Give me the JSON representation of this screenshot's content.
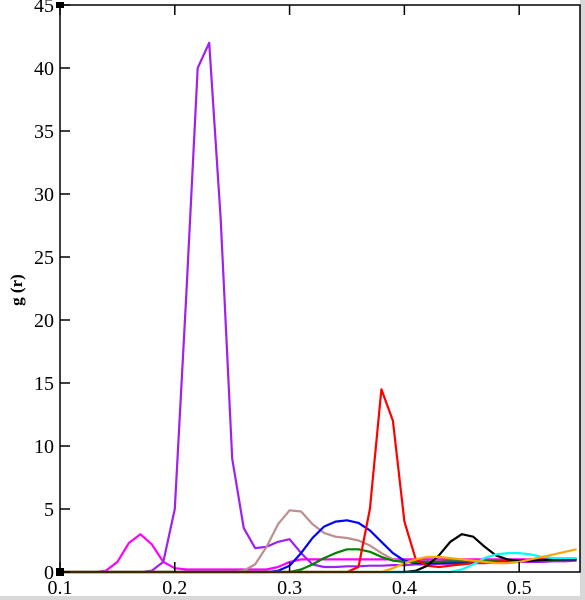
{
  "chart_data": {
    "type": "line",
    "y_label": "g (r)",
    "x": [
      0.1,
      0.11,
      0.12,
      0.13,
      0.14,
      0.15,
      0.16,
      0.17,
      0.18,
      0.19,
      0.2,
      0.21,
      0.22,
      0.23,
      0.24,
      0.25,
      0.26,
      0.27,
      0.28,
      0.29,
      0.3,
      0.31,
      0.32,
      0.33,
      0.34,
      0.35,
      0.36,
      0.37,
      0.38,
      0.39,
      0.4,
      0.41,
      0.42,
      0.43,
      0.44,
      0.45,
      0.46,
      0.47,
      0.48,
      0.49,
      0.5,
      0.51,
      0.52,
      0.53,
      0.54,
      0.55
    ],
    "series": [
      {
        "color": "#ff00ff",
        "values": [
          0,
          0,
          0,
          0,
          0.1,
          0.8,
          2.3,
          3,
          2.2,
          0.8,
          0.3,
          0.2,
          0.2,
          0.2,
          0.2,
          0.2,
          0.2,
          0.2,
          0.2,
          0.4,
          0.8,
          1.0,
          1.0,
          1.0,
          1.0,
          1.0,
          1.0,
          1.0,
          1.0,
          1.0,
          1.0,
          1.0,
          1.0,
          1.0,
          1.0,
          1.0,
          1.0,
          1.0,
          1.0,
          1.0,
          1.0,
          1.0,
          1.0,
          1.0,
          1.0,
          1.0
        ]
      },
      {
        "color": "#a020f0",
        "values": [
          0,
          0,
          0,
          0,
          0,
          0,
          0,
          0,
          0.1,
          0.8,
          5,
          22,
          40,
          42,
          28,
          9,
          3.5,
          1.9,
          2,
          2.4,
          2.6,
          1.5,
          0.6,
          0.4,
          0.4,
          0.45,
          0.45,
          0.5,
          0.5,
          0.55,
          0.55,
          0.6,
          0.6,
          0.65,
          0.65,
          0.7,
          0.7,
          0.7,
          0.75,
          0.75,
          0.8,
          0.8,
          0.8,
          0.85,
          0.85,
          0.9
        ]
      },
      {
        "color": "#bc8f8f",
        "values": [
          0,
          0,
          0,
          0,
          0,
          0,
          0,
          0,
          0,
          0,
          0,
          0,
          0,
          0,
          0,
          0,
          0.1,
          0.6,
          2,
          3.8,
          4.9,
          4.8,
          3.8,
          3.1,
          2.8,
          2.7,
          2.5,
          2.1,
          1.5,
          1.0,
          0.8,
          0.8,
          0.8,
          0.8,
          0.85,
          0.85,
          0.85,
          0.9,
          0.9,
          0.9,
          0.9,
          0.95,
          0.95,
          0.95,
          1.0,
          1.0
        ]
      },
      {
        "color": "#0000ff",
        "values": [
          0,
          0,
          0,
          0,
          0,
          0,
          0,
          0,
          0,
          0,
          0,
          0,
          0,
          0,
          0,
          0,
          0,
          0,
          0,
          0.1,
          0.5,
          1.5,
          2.7,
          3.6,
          4.0,
          4.1,
          3.9,
          3.3,
          2.4,
          1.5,
          0.9,
          0.7,
          0.7,
          0.7,
          0.75,
          0.75,
          0.8,
          0.8,
          0.85,
          0.85,
          0.9,
          0.9,
          0.95,
          0.95,
          1.0,
          1.0
        ]
      },
      {
        "color": "#008000",
        "values": [
          0,
          0,
          0,
          0,
          0,
          0,
          0,
          0,
          0,
          0,
          0,
          0,
          0,
          0,
          0,
          0,
          0,
          0,
          0,
          0,
          0,
          0.2,
          0.6,
          1.1,
          1.5,
          1.8,
          1.8,
          1.6,
          1.2,
          0.9,
          0.8,
          0.8,
          0.8,
          0.8,
          0.85,
          0.85,
          0.85,
          0.9,
          0.9,
          0.9,
          0.9,
          0.95,
          0.95,
          0.95,
          1.0,
          1.0
        ]
      },
      {
        "color": "#ff0000",
        "values": [
          0,
          0,
          0,
          0,
          0,
          0,
          0,
          0,
          0,
          0,
          0,
          0,
          0,
          0,
          0,
          0,
          0,
          0,
          0,
          0,
          0,
          0,
          0,
          0,
          0,
          0,
          0.4,
          5,
          14.5,
          12,
          4,
          1,
          0.5,
          0.4,
          0.5,
          0.6,
          0.7,
          0.8,
          0.8,
          0.9,
          0.9,
          1.0,
          1.0,
          1.0,
          1.0,
          1.0
        ]
      },
      {
        "color": "#000000",
        "values": [
          0,
          0,
          0,
          0,
          0,
          0,
          0,
          0,
          0,
          0,
          0,
          0,
          0,
          0,
          0,
          0,
          0,
          0,
          0,
          0,
          0,
          0,
          0,
          0,
          0,
          0,
          0,
          0,
          0,
          0,
          0,
          0.1,
          0.5,
          1.3,
          2.4,
          3.0,
          2.8,
          2.0,
          1.3,
          1.0,
          0.9,
          0.9,
          0.95,
          1.0,
          1.0,
          1.0
        ]
      },
      {
        "color": "#00ffff",
        "values": [
          0,
          0,
          0,
          0,
          0,
          0,
          0,
          0,
          0,
          0,
          0,
          0,
          0,
          0,
          0,
          0,
          0,
          0,
          0,
          0,
          0,
          0,
          0,
          0,
          0,
          0,
          0,
          0,
          0,
          0,
          0,
          0,
          0,
          0,
          0,
          0.2,
          0.6,
          1.1,
          1.4,
          1.5,
          1.5,
          1.4,
          1.2,
          1.1,
          1.1,
          1.1
        ]
      },
      {
        "color": "#ffa500",
        "values": [
          0,
          0,
          0,
          0,
          0,
          0,
          0,
          0,
          0,
          0,
          0,
          0,
          0,
          0,
          0,
          0,
          0,
          0,
          0,
          0,
          0,
          0,
          0,
          0,
          0,
          0,
          0,
          0,
          0,
          0.3,
          0.7,
          1.0,
          1.2,
          1.2,
          1.1,
          1.0,
          0.9,
          0.8,
          0.7,
          0.7,
          0.8,
          1.0,
          1.2,
          1.4,
          1.6,
          1.8
        ]
      }
    ],
    "xlim": [
      0.1,
      0.553
    ],
    "ylim": [
      0,
      45
    ],
    "xticks": [
      0.1,
      0.2,
      0.3,
      0.4,
      0.5
    ],
    "yticks": [
      0,
      5,
      10,
      15,
      20,
      25,
      30,
      35,
      40,
      45
    ]
  }
}
